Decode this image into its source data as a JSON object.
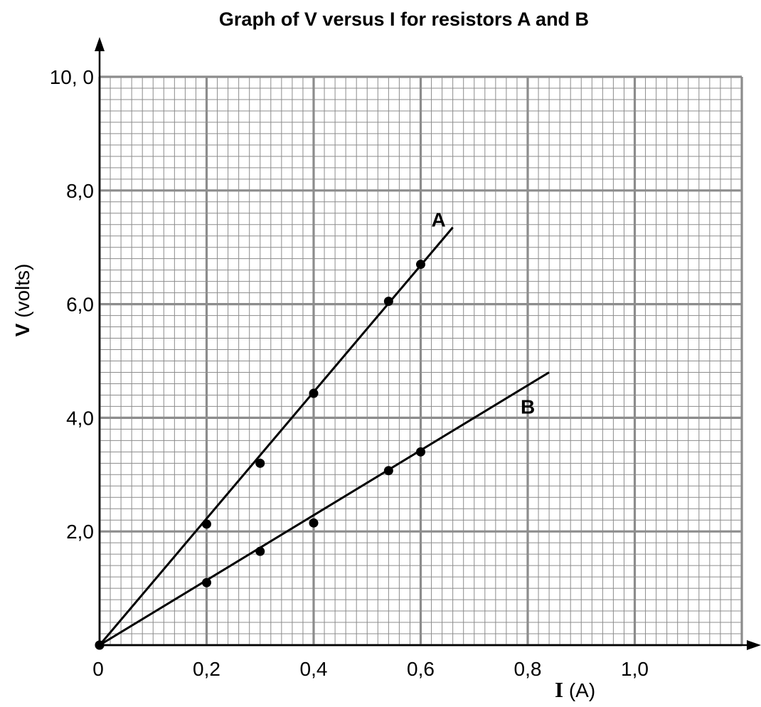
{
  "chart_data": {
    "type": "scatter",
    "title": "Graph of V versus I for resistors A and B",
    "xlabel": {
      "symbol": "I",
      "unit": " (A)"
    },
    "ylabel": {
      "symbol": "V",
      "unit": " (volts)"
    },
    "xlim": [
      0,
      1.2
    ],
    "ylim": [
      0,
      10.0
    ],
    "grid": true,
    "x_ticks": [
      {
        "value": 0.2,
        "label": "0,2"
      },
      {
        "value": 0.4,
        "label": "0,4"
      },
      {
        "value": 0.6,
        "label": "0,6"
      },
      {
        "value": 0.8,
        "label": "0,8"
      },
      {
        "value": 1.0,
        "label": "1,0"
      }
    ],
    "y_ticks": [
      {
        "value": 2.0,
        "label": "2,0"
      },
      {
        "value": 4.0,
        "label": "4,0"
      },
      {
        "value": 6.0,
        "label": "6,0"
      },
      {
        "value": 8.0,
        "label": "8,0"
      },
      {
        "value": 10.0,
        "label": "10, 0"
      }
    ],
    "origin_label": "0",
    "series": [
      {
        "name": "A",
        "points": [
          [
            0,
            0
          ],
          [
            0.2,
            2.13
          ],
          [
            0.3,
            3.2
          ],
          [
            0.4,
            4.43
          ],
          [
            0.54,
            6.05
          ],
          [
            0.6,
            6.7
          ]
        ],
        "fit_line": [
          [
            0,
            0
          ],
          [
            0.66,
            7.35
          ]
        ]
      },
      {
        "name": "B",
        "points": [
          [
            0,
            0
          ],
          [
            0.2,
            1.1
          ],
          [
            0.3,
            1.65
          ],
          [
            0.4,
            2.15
          ],
          [
            0.54,
            3.07
          ],
          [
            0.6,
            3.4
          ]
        ],
        "fit_line": [
          [
            0,
            0
          ],
          [
            0.84,
            4.8
          ]
        ]
      }
    ]
  }
}
